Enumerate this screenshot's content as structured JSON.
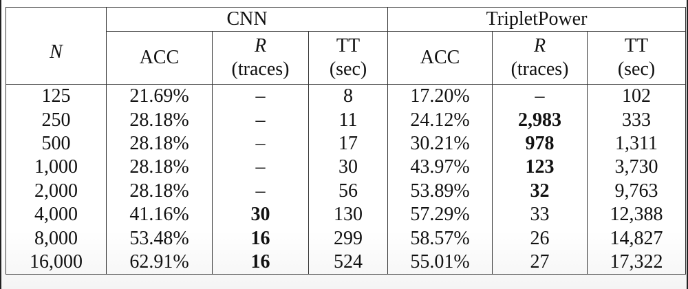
{
  "table": {
    "header": {
      "n_label": "N",
      "group_cnn": "CNN",
      "group_triplet": "TripletPower",
      "acc_label": "ACC",
      "r_label": "R",
      "r_unit": "(traces)",
      "tt_label": "TT",
      "tt_unit": "(sec)"
    },
    "rows": [
      {
        "n": "125",
        "cnn_acc": "21.69%",
        "cnn_r": "–",
        "cnn_tt": "8",
        "tp_acc": "17.20%",
        "tp_r": "–",
        "tp_tt": "102"
      },
      {
        "n": "250",
        "cnn_acc": "28.18%",
        "cnn_r": "–",
        "cnn_tt": "11",
        "tp_acc": "24.12%",
        "tp_r": "2,983",
        "tp_tt": "333"
      },
      {
        "n": "500",
        "cnn_acc": "28.18%",
        "cnn_r": "–",
        "cnn_tt": "17",
        "tp_acc": "30.21%",
        "tp_r": "978",
        "tp_tt": "1,311"
      },
      {
        "n": "1,000",
        "cnn_acc": "28.18%",
        "cnn_r": "–",
        "cnn_tt": "30",
        "tp_acc": "43.97%",
        "tp_r": "123",
        "tp_tt": "3,730"
      },
      {
        "n": "2,000",
        "cnn_acc": "28.18%",
        "cnn_r": "–",
        "cnn_tt": "56",
        "tp_acc": "53.89%",
        "tp_r": "32",
        "tp_tt": "9,763"
      },
      {
        "n": "4,000",
        "cnn_acc": "41.16%",
        "cnn_r": "30",
        "cnn_tt": "130",
        "tp_acc": "57.29%",
        "tp_r": "33",
        "tp_tt": "12,388"
      },
      {
        "n": "8,000",
        "cnn_acc": "53.48%",
        "cnn_r": "16",
        "cnn_tt": "299",
        "tp_acc": "58.57%",
        "tp_r": "26",
        "tp_tt": "14,827"
      },
      {
        "n": "16,000",
        "cnn_acc": "62.91%",
        "cnn_r": "16",
        "cnn_tt": "524",
        "tp_acc": "55.01%",
        "tp_r": "27",
        "tp_tt": "17,322"
      }
    ]
  }
}
